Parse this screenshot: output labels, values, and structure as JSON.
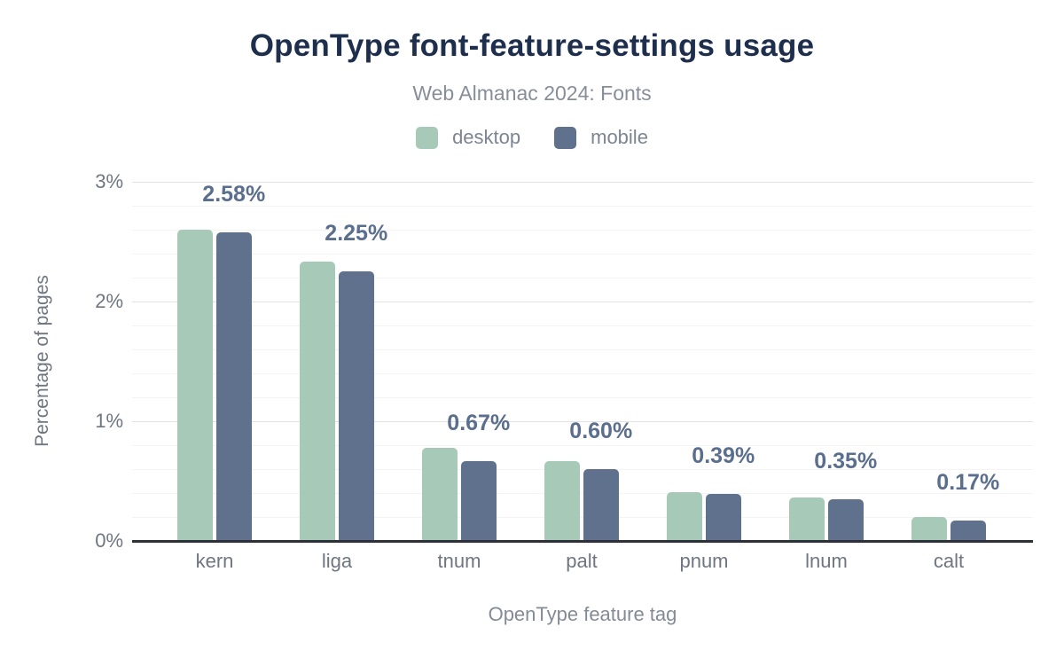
{
  "title": "OpenType font-feature-settings usage",
  "subtitle": "Web Almanac 2024: Fonts",
  "colors": {
    "title": "#1e2f4e",
    "subtitle": "#878e9a",
    "desktop": "#a7c9b8",
    "mobile": "#5f718c",
    "bar_label": "#5a6e8e",
    "axis_text": "#6f7682",
    "axis_line": "#2e2f38",
    "grid_major": "#e2e2e2",
    "grid_minor": "#f4f4f4"
  },
  "chart_data": {
    "type": "bar",
    "title": "OpenType font-feature-settings usage",
    "subtitle": "Web Almanac 2024: Fonts",
    "categories": [
      "kern",
      "liga",
      "tnum",
      "palt",
      "pnum",
      "lnum",
      "calt"
    ],
    "series": [
      {
        "name": "desktop",
        "color": "#a7c9b8",
        "values": [
          2.6,
          2.33,
          0.78,
          0.67,
          0.41,
          0.36,
          0.2
        ]
      },
      {
        "name": "mobile",
        "color": "#5f718c",
        "values": [
          2.58,
          2.25,
          0.67,
          0.6,
          0.39,
          0.35,
          0.17
        ]
      }
    ],
    "bar_labels": [
      "2.58%",
      "2.25%",
      "0.67%",
      "0.60%",
      "0.39%",
      "0.35%",
      "0.17%"
    ],
    "xlabel": "OpenType feature tag",
    "ylabel": "Percentage of pages",
    "ylim": [
      0,
      3
    ],
    "yticks": [
      {
        "value": 0,
        "label": "0%"
      },
      {
        "value": 1,
        "label": "1%"
      },
      {
        "value": 2,
        "label": "2%"
      },
      {
        "value": 3,
        "label": "3%"
      }
    ],
    "grid": {
      "major_step": 1,
      "minor_step": 0.2,
      "legend_position": "top"
    }
  }
}
